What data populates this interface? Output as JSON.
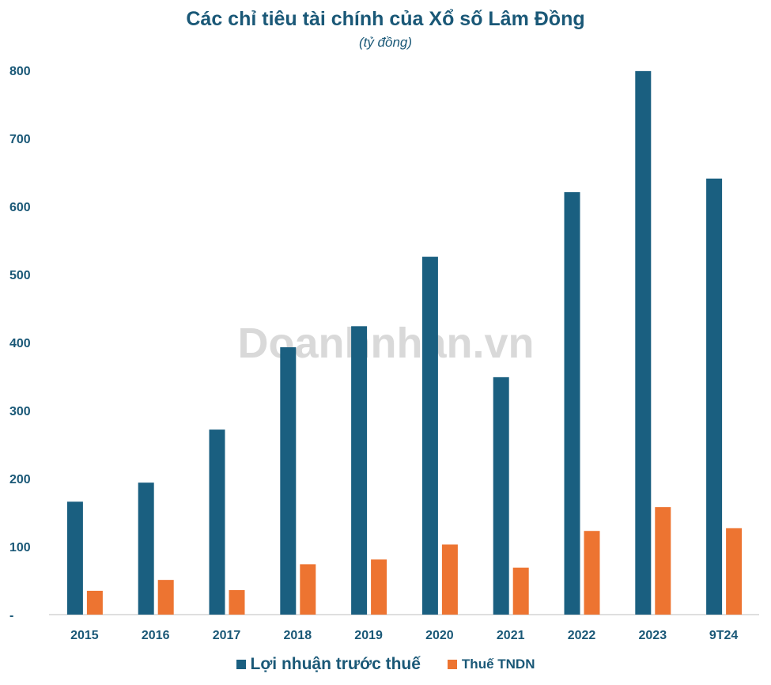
{
  "chart_data": {
    "type": "bar",
    "title": "Các chỉ tiêu tài chính của Xổ số Lâm Đồng",
    "subtitle": "(tỷ đồng)",
    "categories": [
      "2015",
      "2016",
      "2017",
      "2018",
      "2019",
      "2020",
      "2021",
      "2022",
      "2023",
      "9T24"
    ],
    "series": [
      {
        "name": "Lợi nhuận trước thuế",
        "color": "#1a5f80",
        "values": [
          166,
          194,
          272,
          393,
          424,
          526,
          349,
          621,
          799,
          641
        ]
      },
      {
        "name": "Thuế TNDN",
        "color": "#ed7431",
        "values": [
          35,
          51,
          36,
          74,
          81,
          103,
          69,
          123,
          158,
          127
        ]
      }
    ],
    "ylim": [
      0,
      800
    ],
    "yticks": [
      "-",
      "100",
      "200",
      "300",
      "400",
      "500",
      "600",
      "700",
      "800"
    ],
    "grid": false,
    "legend": "bottom",
    "watermark": "Doanhnhan.vn"
  }
}
